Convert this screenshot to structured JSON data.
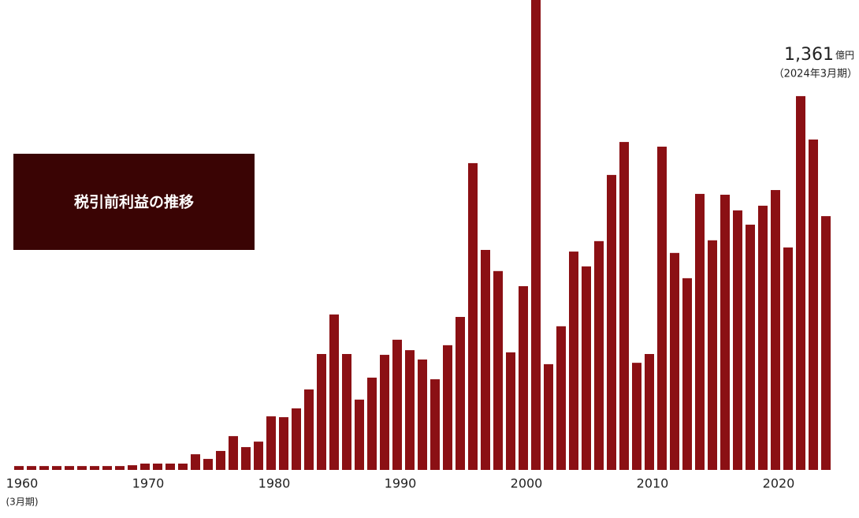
{
  "chart_data": {
    "type": "bar",
    "title": "税引前利益の推移",
    "categories": [
      "1960",
      null,
      null,
      null,
      null,
      null,
      null,
      null,
      null,
      null,
      "1970",
      null,
      null,
      null,
      null,
      null,
      null,
      null,
      null,
      null,
      "1980",
      null,
      null,
      null,
      null,
      null,
      null,
      null,
      null,
      null,
      "1990",
      null,
      null,
      null,
      null,
      null,
      null,
      null,
      null,
      null,
      "2000",
      null,
      null,
      null,
      null,
      null,
      null,
      null,
      null,
      null,
      "2010",
      null,
      null,
      null,
      null,
      null,
      null,
      null,
      null,
      null,
      "2020",
      null,
      null,
      null,
      null
    ],
    "x_note": "(3月期)",
    "values": [
      14,
      14,
      14,
      14,
      14,
      14,
      14,
      14,
      14,
      17,
      23,
      23,
      23,
      23,
      57,
      40,
      69,
      123,
      83,
      103,
      195,
      192,
      224,
      293,
      422,
      566,
      422,
      256,
      336,
      419,
      474,
      436,
      402,
      330,
      454,
      557,
      1117,
      801,
      724,
      428,
      669,
      1711,
      385,
      523,
      795,
      741,
      833,
      1074,
      1194,
      390,
      422,
      1177,
      790,
      698,
      1005,
      836,
      1002,
      945,
      893,
      962,
      1019,
      810,
      1361,
      1203,
      924
    ],
    "value_labels": [
      null,
      null,
      null,
      null,
      null,
      null,
      null,
      null,
      null,
      null,
      null,
      null,
      null,
      null,
      null,
      null,
      null,
      null,
      null,
      null,
      null,
      null,
      null,
      null,
      null,
      null,
      null,
      null,
      null,
      null,
      null,
      null,
      null,
      null,
      null,
      null,
      null,
      null,
      null,
      null,
      null,
      null,
      null,
      null,
      null,
      null,
      null,
      null,
      null,
      null,
      null,
      null,
      null,
      null,
      null,
      null,
      null,
      null,
      null,
      null,
      null,
      null,
      "1,361",
      null,
      null
    ],
    "annotation_unit": "億円",
    "annotation_note": "（2024年3月期）",
    "color": "#8b1014"
  }
}
